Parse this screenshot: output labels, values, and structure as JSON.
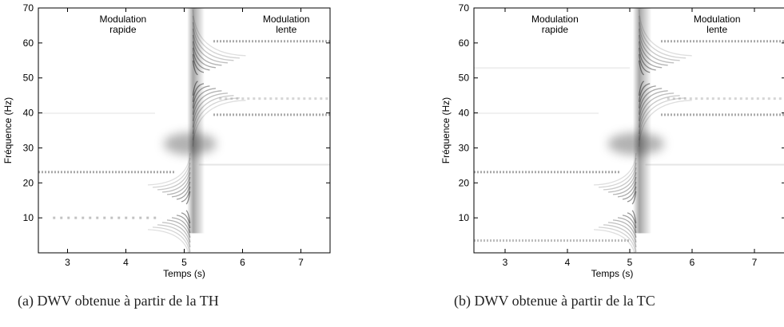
{
  "figures": [
    {
      "x_label": "Temps (s)",
      "y_label": "Fréquence (Hz)",
      "xlim": [
        2.5,
        7.5
      ],
      "xticks": [
        3,
        4,
        5,
        6,
        7
      ],
      "ylim": [
        0,
        70
      ],
      "yticks": [
        10,
        20,
        30,
        40,
        50,
        60,
        70
      ],
      "annotations": [
        [
          "Modulation",
          "rapide"
        ],
        [
          "Modulation",
          "lente"
        ]
      ],
      "caption": "(a) DWV obtenue à partir de la TH"
    },
    {
      "x_label": "Temps (s)",
      "y_label": "Fréquence (Hz)",
      "xlim": [
        2.5,
        7.5
      ],
      "xticks": [
        3,
        4,
        5,
        6,
        7
      ],
      "ylim": [
        0,
        70
      ],
      "yticks": [
        10,
        20,
        30,
        40,
        50,
        60,
        70
      ],
      "annotations": [
        [
          "Modulation",
          "rapide"
        ],
        [
          "Modulation",
          "lente"
        ]
      ],
      "caption": "(b) DWV obtenue à partir de la TC"
    }
  ]
}
